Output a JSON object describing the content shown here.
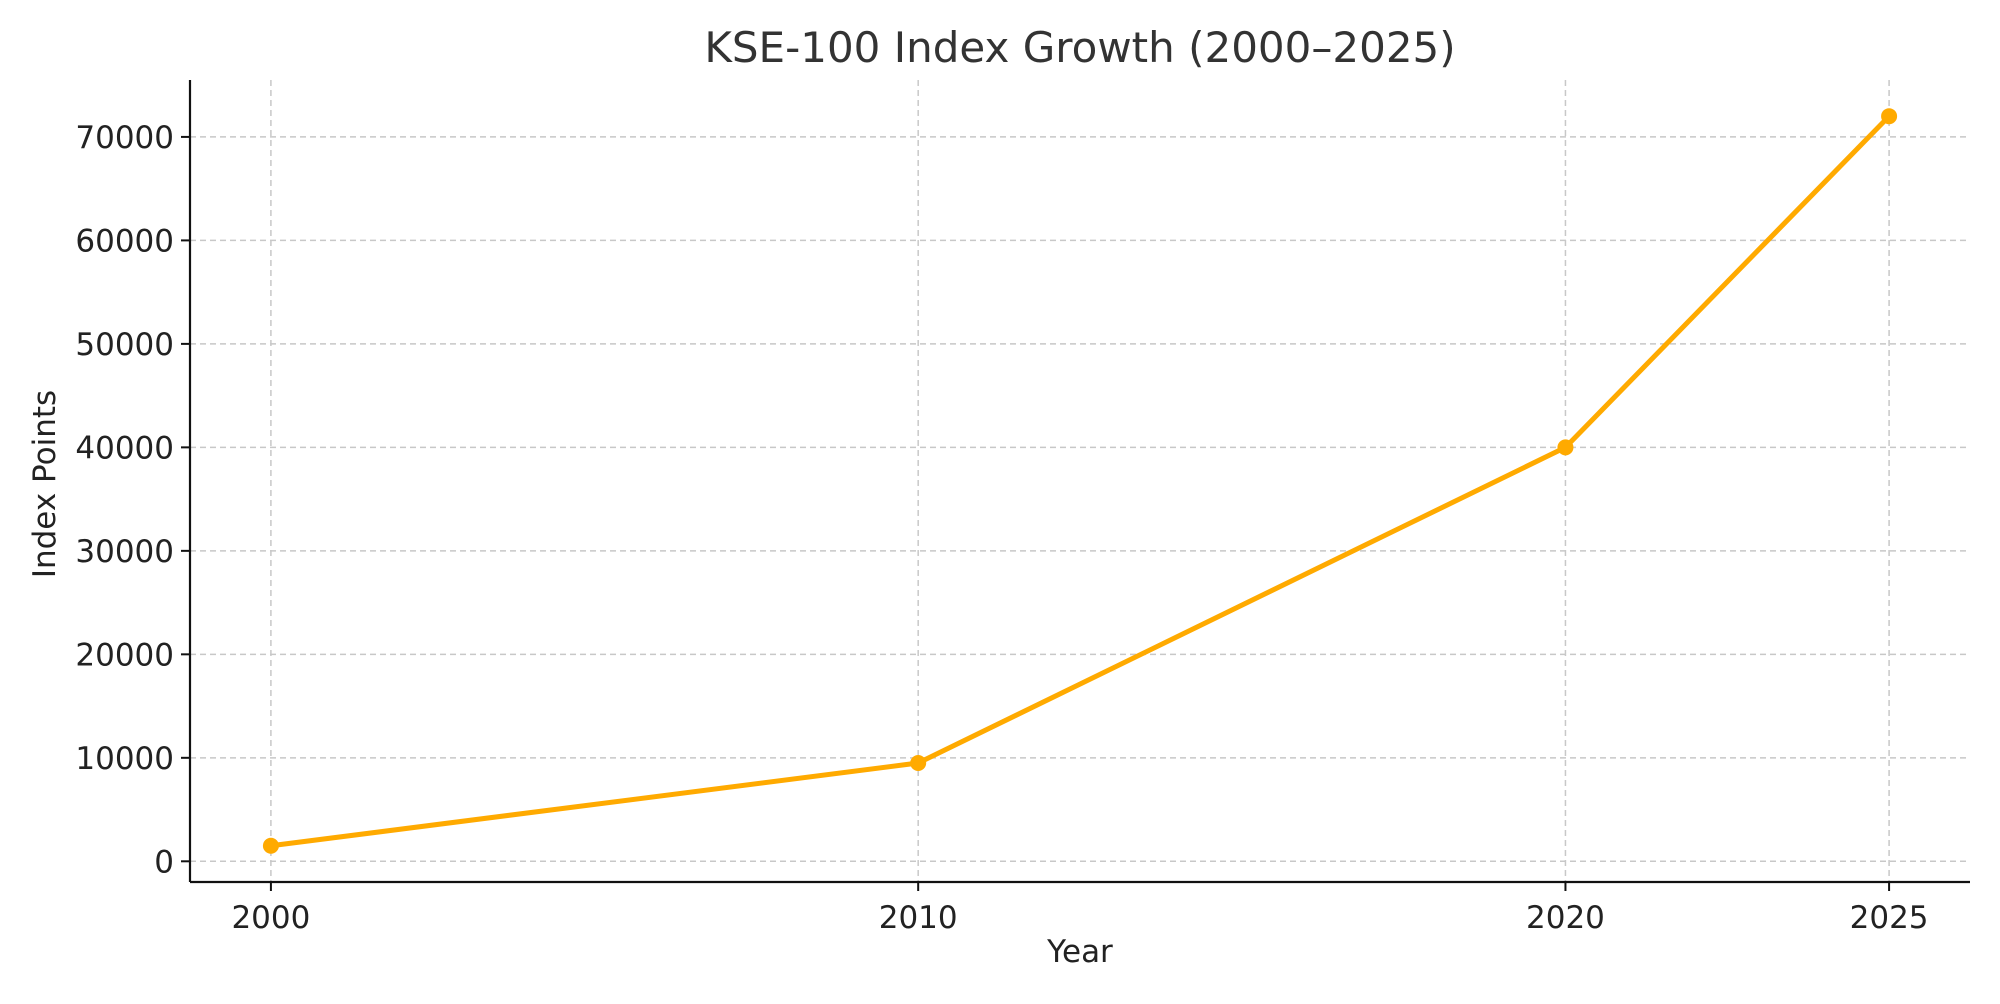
{
  "chart_data": {
    "type": "line",
    "title": "KSE-100 Index Growth (2000–2025)",
    "xlabel": "Year",
    "ylabel": "Index Points",
    "x": [
      2000,
      2010,
      2020,
      2025
    ],
    "series": [
      {
        "values": [
          1500,
          9500,
          40000,
          72000
        ],
        "color": "#ffaa00"
      }
    ],
    "xticks": [
      2000,
      2010,
      2020,
      2025
    ],
    "xtick_labels": [
      "2000",
      "2010",
      "2020",
      "2025"
    ],
    "yticks": [
      0,
      10000,
      20000,
      30000,
      40000,
      50000,
      60000,
      70000
    ],
    "ytick_labels": [
      "0",
      "10000",
      "20000",
      "30000",
      "40000",
      "50000",
      "60000",
      "70000"
    ],
    "xlim": [
      1998.75,
      2026.25
    ],
    "ylim": [
      -2000,
      75500
    ],
    "grid": true
  }
}
